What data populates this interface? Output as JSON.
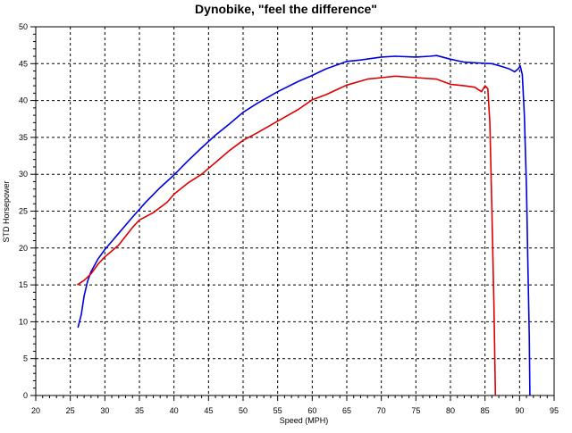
{
  "chart_data": {
    "type": "line",
    "title": "Dynobike, \"feel the difference\"",
    "xlabel": "Speed (MPH)",
    "ylabel": "STD Horsepower",
    "xlim": [
      20,
      95
    ],
    "ylim": [
      0,
      50
    ],
    "x_ticks": [
      "20",
      "25",
      "30",
      "35",
      "40",
      "45",
      "50",
      "55",
      "60",
      "65",
      "70",
      "75",
      "80",
      "85",
      "90",
      "95"
    ],
    "y_ticks": [
      "0",
      "5",
      "10",
      "15",
      "20",
      "25",
      "30",
      "35",
      "40",
      "45",
      "50"
    ],
    "grid": true,
    "series": [
      {
        "color": "#0000dd",
        "points": [
          [
            26.1,
            9.2
          ],
          [
            26.6,
            11.0
          ],
          [
            27.0,
            13.5
          ],
          [
            27.5,
            15.5
          ],
          [
            28.0,
            16.8
          ],
          [
            29.0,
            18.5
          ],
          [
            30.0,
            19.8
          ],
          [
            31.0,
            20.9
          ],
          [
            32.0,
            22.0
          ],
          [
            34.0,
            24.2
          ],
          [
            36.0,
            26.3
          ],
          [
            38.0,
            28.2
          ],
          [
            40.0,
            29.9
          ],
          [
            42.0,
            31.8
          ],
          [
            44.0,
            33.6
          ],
          [
            46.0,
            35.3
          ],
          [
            48.0,
            36.8
          ],
          [
            50.0,
            38.4
          ],
          [
            52.0,
            39.6
          ],
          [
            55.0,
            41.2
          ],
          [
            58.0,
            42.6
          ],
          [
            60.0,
            43.4
          ],
          [
            62.0,
            44.3
          ],
          [
            65.0,
            45.3
          ],
          [
            67.0,
            45.5
          ],
          [
            70.0,
            45.9
          ],
          [
            72.0,
            46.0
          ],
          [
            75.0,
            45.9
          ],
          [
            77.0,
            46.0
          ],
          [
            78.0,
            46.1
          ],
          [
            80.0,
            45.6
          ],
          [
            82.0,
            45.2
          ],
          [
            84.0,
            45.1
          ],
          [
            86.0,
            45.0
          ],
          [
            87.5,
            44.6
          ],
          [
            88.5,
            44.3
          ],
          [
            89.3,
            43.9
          ],
          [
            89.8,
            44.3
          ],
          [
            90.1,
            44.7
          ],
          [
            90.4,
            43.5
          ],
          [
            90.7,
            38.0
          ],
          [
            91.0,
            28.0
          ],
          [
            91.2,
            18.0
          ],
          [
            91.4,
            8.0
          ],
          [
            91.5,
            0.0
          ]
        ]
      },
      {
        "color": "#dd0000",
        "points": [
          [
            26.0,
            15.0
          ],
          [
            27.0,
            15.6
          ],
          [
            28.0,
            16.5
          ],
          [
            29.0,
            17.8
          ],
          [
            30.0,
            18.8
          ],
          [
            31.0,
            19.6
          ],
          [
            32.0,
            20.4
          ],
          [
            33.0,
            21.6
          ],
          [
            34.0,
            22.8
          ],
          [
            35.0,
            23.8
          ],
          [
            37.0,
            24.8
          ],
          [
            39.0,
            26.2
          ],
          [
            40.0,
            27.3
          ],
          [
            42.0,
            28.8
          ],
          [
            44.0,
            30.0
          ],
          [
            46.0,
            31.6
          ],
          [
            48.0,
            33.2
          ],
          [
            50.0,
            34.6
          ],
          [
            52.0,
            35.6
          ],
          [
            55.0,
            37.2
          ],
          [
            58.0,
            38.8
          ],
          [
            60.0,
            40.1
          ],
          [
            62.0,
            40.8
          ],
          [
            65.0,
            42.1
          ],
          [
            68.0,
            42.9
          ],
          [
            70.0,
            43.1
          ],
          [
            72.0,
            43.3
          ],
          [
            75.0,
            43.1
          ],
          [
            78.0,
            42.9
          ],
          [
            80.0,
            42.2
          ],
          [
            82.0,
            42.0
          ],
          [
            83.5,
            41.8
          ],
          [
            84.5,
            41.2
          ],
          [
            85.0,
            42.0
          ],
          [
            85.4,
            41.6
          ],
          [
            85.7,
            37.0
          ],
          [
            86.0,
            25.0
          ],
          [
            86.3,
            12.0
          ],
          [
            86.5,
            0.0
          ]
        ]
      }
    ]
  }
}
